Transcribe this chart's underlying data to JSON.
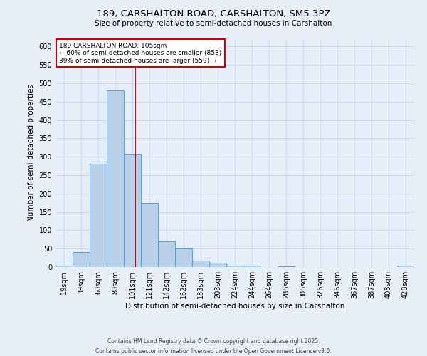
{
  "title_line1": "189, CARSHALTON ROAD, CARSHALTON, SM5 3PZ",
  "title_line2": "Size of property relative to semi-detached houses in Carshalton",
  "xlabel": "Distribution of semi-detached houses by size in Carshalton",
  "ylabel": "Number of semi-detached properties",
  "bin_labels": [
    "19sqm",
    "39sqm",
    "60sqm",
    "80sqm",
    "101sqm",
    "121sqm",
    "142sqm",
    "162sqm",
    "183sqm",
    "203sqm",
    "224sqm",
    "244sqm",
    "264sqm",
    "285sqm",
    "305sqm",
    "326sqm",
    "346sqm",
    "367sqm",
    "387sqm",
    "408sqm",
    "428sqm"
  ],
  "bar_values": [
    3,
    40,
    280,
    480,
    308,
    175,
    70,
    50,
    18,
    12,
    3,
    3,
    0,
    2,
    0,
    0,
    0,
    0,
    0,
    0,
    3
  ],
  "bar_color": "#b8d0e8",
  "bar_edgecolor": "#5b9bd5",
  "grid_color": "#c8d4e8",
  "background_color": "#e8eef8",
  "vline_color": "#990000",
  "annotation_text": "189 CARSHALTON ROAD: 105sqm\n← 60% of semi-detached houses are smaller (853)\n39% of semi-detached houses are larger (559) →",
  "annotation_box_color": "#ffffff",
  "annotation_box_edgecolor": "#cc0000",
  "ylim": [
    0,
    620
  ],
  "yticks": [
    0,
    50,
    100,
    150,
    200,
    250,
    300,
    350,
    400,
    450,
    500,
    550,
    600
  ],
  "footer_line1": "Contains HM Land Registry data © Crown copyright and database right 2025.",
  "footer_line2": "Contains public sector information licensed under the Open Government Licence v3.0.",
  "vline_index": 4.18
}
